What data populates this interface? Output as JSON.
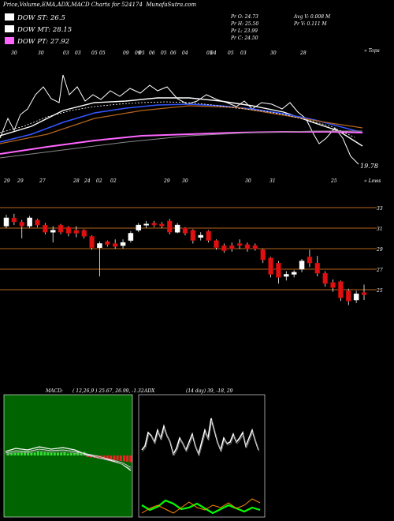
{
  "header": {
    "title": "Price,Volume,EMA,ADX,MACD Charts for 524174",
    "site": "MunafaSutra.com"
  },
  "legend": [
    {
      "label": "DOW ST: 26.5",
      "color": "#ffffff"
    },
    {
      "label": "DOW MT: 28.15",
      "color": "#ffffff"
    },
    {
      "label": "DOW PT: 27.92",
      "color": "#ff66ff"
    }
  ],
  "ohlc": {
    "open": "Pr O: 24.73",
    "high": "Pr H: 25.50",
    "low": "Pr L: 23.99",
    "close": "Pr C: 24.50"
  },
  "volume": {
    "avg": "Avg V: 0.008 M",
    "pr": "Pr V: 0.111 M"
  },
  "top_panel": {
    "tag": "« Tops",
    "last_label": "19.78",
    "date_labels": [
      "30",
      "30",
      "03",
      "03",
      "05",
      "05",
      "09",
      "09",
      "05",
      "06",
      "05",
      "06",
      "04",
      "05",
      "04",
      "05",
      "03",
      "30",
      "28"
    ]
  },
  "mid_panel": {
    "tag": "« Lows",
    "date_labels": [
      "29",
      "29",
      "27",
      "28",
      "24",
      "02",
      "02",
      "29",
      "30",
      "30",
      "31",
      "25"
    ]
  },
  "chart_data": [
    {
      "type": "line",
      "title": "Price,Volume,EMA,ADX,MACD Charts for 524174",
      "series_names": [
        "DOW ST: 26.5",
        "DOW MT: 28.15",
        "DOW PT: 27.92"
      ],
      "last_value": 19.78
    },
    {
      "type": "candlestick",
      "y_ticks": [
        33,
        31,
        29,
        27,
        25
      ],
      "ylim": [
        24,
        34
      ],
      "candles": [
        {
          "o": 31.2,
          "c": 32.0,
          "h": 32.3,
          "l": 31.0
        },
        {
          "o": 32.0,
          "c": 31.6,
          "h": 32.4,
          "l": 31.3
        },
        {
          "o": 31.6,
          "c": 31.2,
          "h": 31.8,
          "l": 30.0
        },
        {
          "o": 31.2,
          "c": 32.0,
          "h": 32.2,
          "l": 31.0
        },
        {
          "o": 31.8,
          "c": 31.3,
          "h": 31.9,
          "l": 31.1
        },
        {
          "o": 31.3,
          "c": 30.6,
          "h": 31.5,
          "l": 30.4
        },
        {
          "o": 30.6,
          "c": 30.8,
          "h": 31.2,
          "l": 29.6
        },
        {
          "o": 31.3,
          "c": 30.6,
          "h": 31.4,
          "l": 30.4
        },
        {
          "o": 31.1,
          "c": 30.5,
          "h": 31.2,
          "l": 30.2
        },
        {
          "o": 30.8,
          "c": 30.5,
          "h": 31.2,
          "l": 30.1
        },
        {
          "o": 30.8,
          "c": 30.2,
          "h": 30.9,
          "l": 30.0
        },
        {
          "o": 30.2,
          "c": 29.1,
          "h": 30.3,
          "l": 28.9
        },
        {
          "o": 29.1,
          "c": 29.5,
          "h": 29.7,
          "l": 26.3
        },
        {
          "o": 29.7,
          "c": 29.4,
          "h": 29.8,
          "l": 29.2
        },
        {
          "o": 29.5,
          "c": 29.2,
          "h": 29.9,
          "l": 29.0
        },
        {
          "o": 29.3,
          "c": 29.6,
          "h": 29.9,
          "l": 29.0
        },
        {
          "o": 29.8,
          "c": 30.5,
          "h": 30.7,
          "l": 29.6
        },
        {
          "o": 30.8,
          "c": 31.3,
          "h": 31.5,
          "l": 30.6
        },
        {
          "o": 31.3,
          "c": 31.4,
          "h": 31.7,
          "l": 31.0
        },
        {
          "o": 31.5,
          "c": 31.3,
          "h": 31.7,
          "l": 31.1
        },
        {
          "o": 31.4,
          "c": 31.2,
          "h": 31.6,
          "l": 31.0
        },
        {
          "o": 31.7,
          "c": 30.6,
          "h": 31.9,
          "l": 30.4
        },
        {
          "o": 30.6,
          "c": 31.3,
          "h": 31.5,
          "l": 30.5
        },
        {
          "o": 31.0,
          "c": 30.5,
          "h": 31.1,
          "l": 30.3
        },
        {
          "o": 30.8,
          "c": 29.8,
          "h": 30.9,
          "l": 29.5
        },
        {
          "o": 30.1,
          "c": 30.3,
          "h": 30.6,
          "l": 29.8
        },
        {
          "o": 30.7,
          "c": 29.8,
          "h": 30.8,
          "l": 29.6
        },
        {
          "o": 29.8,
          "c": 29.1,
          "h": 29.9,
          "l": 28.9
        },
        {
          "o": 29.3,
          "c": 28.8,
          "h": 29.5,
          "l": 28.6
        },
        {
          "o": 29.3,
          "c": 29.0,
          "h": 29.6,
          "l": 28.7
        },
        {
          "o": 29.5,
          "c": 29.3,
          "h": 29.9,
          "l": 29.0
        },
        {
          "o": 29.4,
          "c": 29.0,
          "h": 29.6,
          "l": 28.7
        },
        {
          "o": 29.3,
          "c": 29.0,
          "h": 29.5,
          "l": 28.8
        },
        {
          "o": 28.9,
          "c": 27.9,
          "h": 29.0,
          "l": 27.6
        },
        {
          "o": 28.1,
          "c": 26.5,
          "h": 28.2,
          "l": 26.2
        },
        {
          "o": 27.6,
          "c": 26.2,
          "h": 27.8,
          "l": 25.6
        },
        {
          "o": 26.3,
          "c": 26.5,
          "h": 26.8,
          "l": 25.9
        },
        {
          "o": 26.5,
          "c": 26.7,
          "h": 26.9,
          "l": 26.2
        },
        {
          "o": 27.0,
          "c": 27.8,
          "h": 28.0,
          "l": 26.7
        },
        {
          "o": 28.2,
          "c": 27.6,
          "h": 28.9,
          "l": 27.2
        },
        {
          "o": 27.6,
          "c": 26.6,
          "h": 28.3,
          "l": 26.3
        },
        {
          "o": 26.6,
          "c": 25.6,
          "h": 26.8,
          "l": 25.3
        },
        {
          "o": 25.7,
          "c": 25.2,
          "h": 26.0,
          "l": 24.8
        },
        {
          "o": 25.8,
          "c": 24.2,
          "h": 25.9,
          "l": 23.9
        },
        {
          "o": 24.9,
          "c": 23.9,
          "h": 25.1,
          "l": 23.5
        },
        {
          "o": 24.0,
          "c": 24.6,
          "h": 24.9,
          "l": 23.7
        },
        {
          "o": 24.73,
          "c": 24.5,
          "h": 25.5,
          "l": 23.99
        }
      ]
    },
    {
      "type": "line",
      "title": "MACD:",
      "params": "( 12,26,9 ) 25.67, 26.99, -1.32"
    },
    {
      "type": "line",
      "title": "ADX",
      "params": "(14 day) 39, -18, 29"
    }
  ],
  "colors": {
    "up": "#ffffff",
    "down": "#dd1111",
    "grid": "#b5651d",
    "macd_bg": "#006400",
    "macd_hist_up": "#33dd33",
    "macd_hist_down": "#ee2222",
    "adx_green": "#00ff00",
    "adx_orange": "#ff8800"
  }
}
